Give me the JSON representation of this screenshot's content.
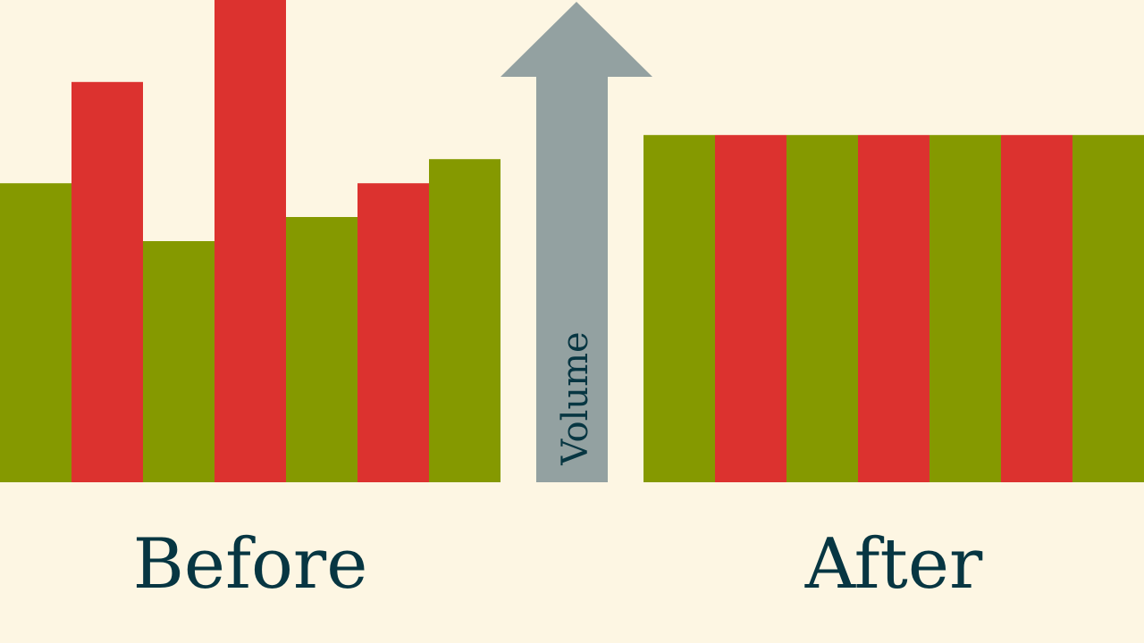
{
  "colors": {
    "background": "#fdf6e3",
    "positive": "#859900",
    "negative": "#dc322f",
    "arrow": "#93a1a1",
    "text": "#073642"
  },
  "axis_label": "Volume",
  "chart_data": [
    {
      "type": "bar",
      "title": "Before",
      "ylim": [
        0,
        100
      ],
      "grid": false,
      "legend": "none",
      "values": [
        62,
        83,
        50,
        100,
        55,
        62,
        67
      ],
      "colors": [
        "positive",
        "negative",
        "positive",
        "negative",
        "positive",
        "negative",
        "positive"
      ]
    },
    {
      "type": "bar",
      "title": "After",
      "ylim": [
        0,
        100
      ],
      "grid": false,
      "legend": "none",
      "values": [
        72,
        72,
        72,
        72,
        72,
        72,
        72
      ],
      "colors": [
        "positive",
        "negative",
        "positive",
        "negative",
        "positive",
        "negative",
        "positive"
      ]
    }
  ]
}
